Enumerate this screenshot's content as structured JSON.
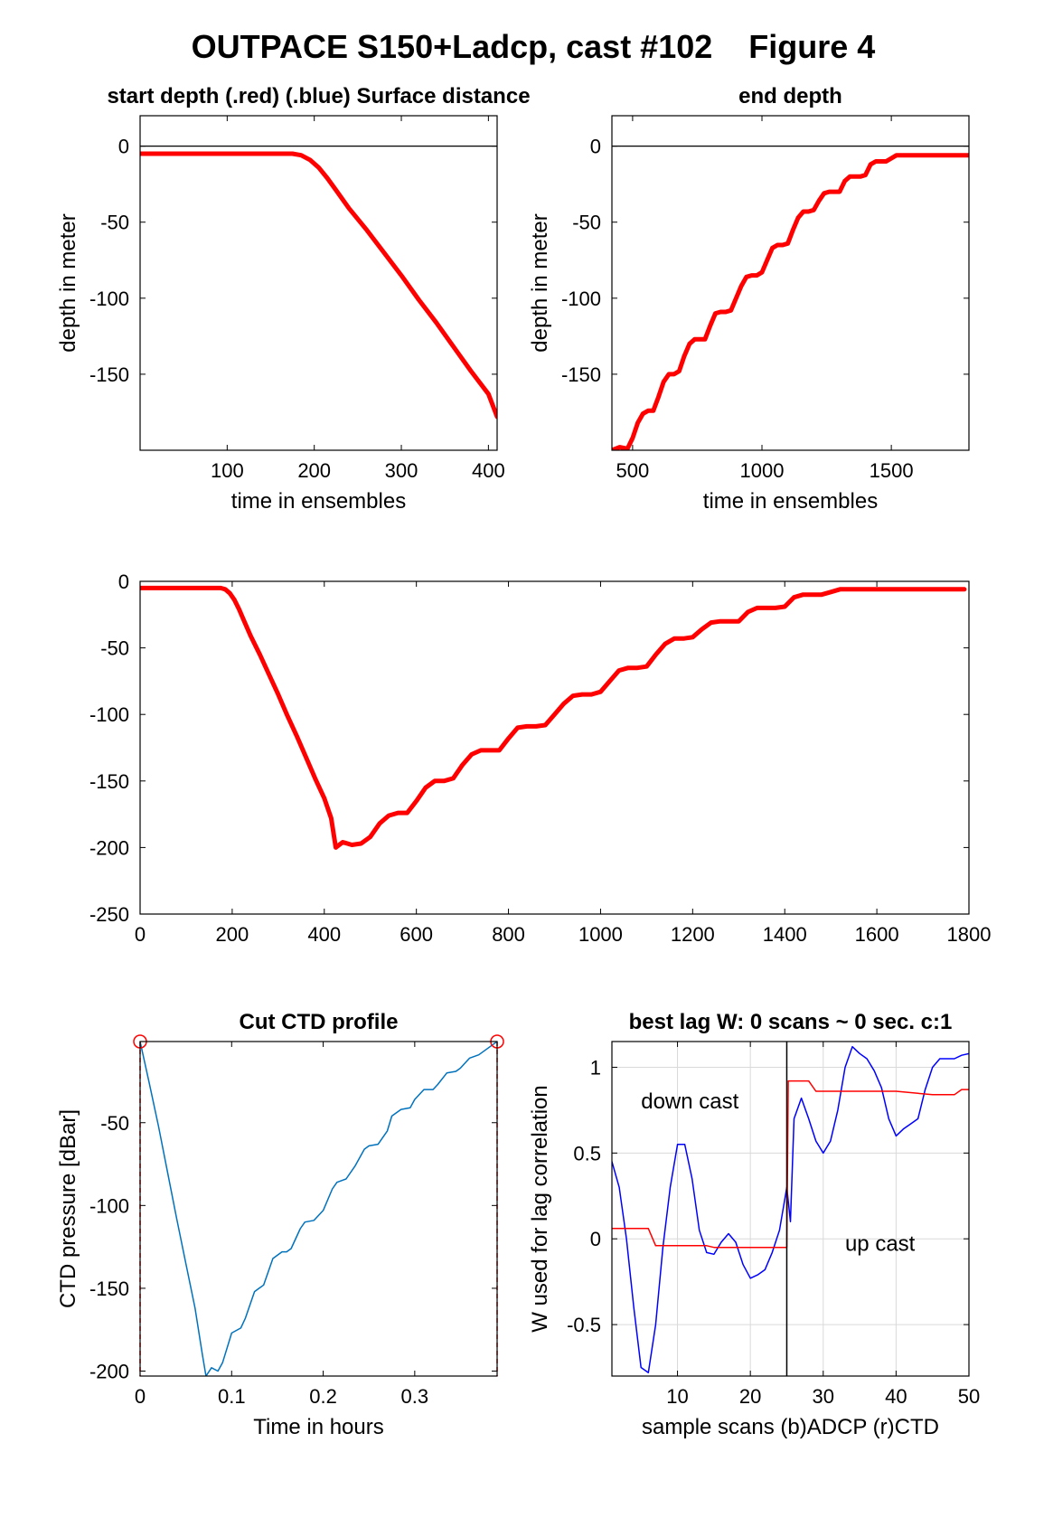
{
  "figure_title": "OUTPACE S150+Ladcp, cast #102    Figure 4",
  "colors": {
    "red": "#ff0000",
    "blue": "#0000ff",
    "ctd": "#0072bd",
    "grid": "#d9d9d9",
    "axes": "#000000"
  },
  "chart_data": [
    {
      "id": "start-depth",
      "type": "line",
      "title": "start depth (.red) (.blue) Surface distance",
      "xlabel": "time in ensembles",
      "ylabel": "depth in meter",
      "xlim": [
        0,
        410
      ],
      "ylim": [
        -200,
        20
      ],
      "xticks": [
        100,
        200,
        300,
        400
      ],
      "yticks": [
        0,
        -50,
        -100,
        -150
      ],
      "zero_line": true,
      "grid": false,
      "series": [
        {
          "color": "#ff0000",
          "width": 5,
          "x": [
            0,
            100,
            175,
            185,
            195,
            205,
            215,
            225,
            240,
            260,
            280,
            300,
            320,
            340,
            360,
            380,
            400,
            410
          ],
          "y": [
            -5,
            -5,
            -5,
            -6,
            -9,
            -14,
            -21,
            -29,
            -41,
            -55,
            -70,
            -85,
            -101,
            -116,
            -132,
            -148,
            -163,
            -178
          ]
        }
      ]
    },
    {
      "id": "end-depth",
      "type": "line",
      "title": "end depth",
      "xlabel": "time in ensembles",
      "ylabel": "depth in meter",
      "xlim": [
        420,
        1800
      ],
      "ylim": [
        -200,
        20
      ],
      "xticks": [
        500,
        1000,
        1500
      ],
      "yticks": [
        0,
        -50,
        -100,
        -150
      ],
      "zero_line": true,
      "grid": false,
      "series": [
        {
          "color": "#ff0000",
          "width": 5,
          "x": [
            420,
            450,
            480,
            500,
            520,
            540,
            560,
            580,
            600,
            620,
            640,
            660,
            680,
            700,
            720,
            740,
            760,
            780,
            800,
            820,
            840,
            860,
            880,
            900,
            920,
            940,
            960,
            980,
            1000,
            1020,
            1040,
            1060,
            1080,
            1100,
            1120,
            1140,
            1160,
            1180,
            1200,
            1220,
            1240,
            1260,
            1280,
            1300,
            1320,
            1340,
            1360,
            1380,
            1400,
            1420,
            1440,
            1460,
            1480,
            1500,
            1520,
            1540,
            1560,
            1600,
            1700,
            1800
          ],
          "y": [
            -200,
            -198,
            -199,
            -192,
            -182,
            -176,
            -174,
            -174,
            -165,
            -155,
            -150,
            -150,
            -148,
            -138,
            -130,
            -127,
            -127,
            -127,
            -118,
            -110,
            -109,
            -109,
            -108,
            -100,
            -92,
            -86,
            -85,
            -85,
            -83,
            -75,
            -67,
            -65,
            -65,
            -64,
            -55,
            -47,
            -43,
            -43,
            -42,
            -36,
            -31,
            -30,
            -30,
            -30,
            -23,
            -20,
            -20,
            -20,
            -19,
            -12,
            -10,
            -10,
            -10,
            -8,
            -6,
            -6,
            -6,
            -6,
            -6,
            -6
          ]
        }
      ]
    },
    {
      "id": "full-depth",
      "type": "line",
      "title": "",
      "xlabel": "",
      "ylabel": "",
      "xlim": [
        0,
        1800
      ],
      "ylim": [
        -250,
        0
      ],
      "xticks": [
        0,
        200,
        400,
        600,
        800,
        1000,
        1200,
        1400,
        1600,
        1800
      ],
      "yticks": [
        0,
        -50,
        -100,
        -150,
        -200,
        -250
      ],
      "zero_line": false,
      "grid": false,
      "series": [
        {
          "color": "#ff0000",
          "width": 5,
          "x": [
            0,
            100,
            175,
            185,
            195,
            205,
            215,
            225,
            240,
            260,
            280,
            300,
            320,
            340,
            360,
            380,
            400,
            415,
            425,
            440,
            460,
            480,
            500,
            520,
            540,
            560,
            580,
            600,
            620,
            640,
            660,
            680,
            700,
            720,
            740,
            760,
            780,
            800,
            820,
            840,
            860,
            880,
            900,
            920,
            940,
            960,
            980,
            1000,
            1020,
            1040,
            1060,
            1080,
            1100,
            1120,
            1140,
            1160,
            1180,
            1200,
            1220,
            1240,
            1260,
            1280,
            1300,
            1320,
            1340,
            1360,
            1380,
            1400,
            1420,
            1440,
            1460,
            1480,
            1500,
            1520,
            1540,
            1560,
            1600,
            1700,
            1790
          ],
          "y": [
            -5,
            -5,
            -5,
            -6,
            -9,
            -14,
            -21,
            -29,
            -41,
            -55,
            -70,
            -85,
            -101,
            -116,
            -132,
            -148,
            -163,
            -178,
            -200,
            -196,
            -198,
            -197,
            -192,
            -182,
            -176,
            -174,
            -174,
            -165,
            -155,
            -150,
            -150,
            -148,
            -138,
            -130,
            -127,
            -127,
            -127,
            -118,
            -110,
            -109,
            -109,
            -108,
            -100,
            -92,
            -86,
            -85,
            -85,
            -83,
            -75,
            -67,
            -65,
            -65,
            -64,
            -55,
            -47,
            -43,
            -43,
            -42,
            -36,
            -31,
            -30,
            -30,
            -30,
            -23,
            -20,
            -20,
            -20,
            -19,
            -12,
            -10,
            -10,
            -10,
            -8,
            -6,
            -6,
            -6,
            -6,
            -6,
            -6
          ]
        }
      ]
    },
    {
      "id": "cut-ctd-profile",
      "type": "line",
      "title": "Cut CTD profile",
      "xlabel": "Time in hours",
      "ylabel": "CTD pressure [dBar]",
      "xlim": [
        0,
        0.39
      ],
      "ylim": [
        -203,
        -1
      ],
      "xticks": [
        0,
        0.1,
        0.2,
        0.3
      ],
      "xtick_labels": [
        "0",
        "0.1",
        "0.2",
        "0.3"
      ],
      "yticks": [
        -50,
        -100,
        -150,
        -200
      ],
      "grid": false,
      "markers": [
        {
          "x": 0,
          "y": -1,
          "color": "#ff0000"
        },
        {
          "x": 0.39,
          "y": -1,
          "color": "#ff0000"
        }
      ],
      "cut_lines": [
        0,
        0.39
      ],
      "series": [
        {
          "color": "#0072bd",
          "width": 1.5,
          "x": [
            0,
            0.01,
            0.02,
            0.03,
            0.04,
            0.05,
            0.06,
            0.068,
            0.072,
            0.078,
            0.085,
            0.09,
            0.1,
            0.11,
            0.115,
            0.125,
            0.13,
            0.135,
            0.145,
            0.155,
            0.16,
            0.165,
            0.175,
            0.18,
            0.19,
            0.2,
            0.21,
            0.215,
            0.225,
            0.235,
            0.245,
            0.25,
            0.26,
            0.27,
            0.275,
            0.285,
            0.295,
            0.3,
            0.31,
            0.32,
            0.325,
            0.335,
            0.345,
            0.35,
            0.36,
            0.37,
            0.38,
            0.39
          ],
          "y": [
            -1,
            -26,
            -52,
            -80,
            -108,
            -135,
            -162,
            -190,
            -203,
            -198,
            -200,
            -195,
            -177,
            -174,
            -168,
            -152,
            -150,
            -148,
            -132,
            -128,
            -128,
            -126,
            -114,
            -110,
            -109,
            -103,
            -90,
            -86,
            -84,
            -76,
            -66,
            -64,
            -63,
            -55,
            -46,
            -42,
            -41,
            -36,
            -30,
            -30,
            -27,
            -20,
            -19,
            -17,
            -11,
            -9,
            -5,
            -1
          ]
        }
      ]
    },
    {
      "id": "best-lag",
      "type": "line",
      "title": "best lag W: 0 scans ~ 0 sec.  c:1",
      "xlabel": "sample scans (b)ADCP (r)CTD",
      "ylabel": "W used for lag correlation",
      "xlim": [
        1,
        50
      ],
      "ylim": [
        -0.8,
        1.15
      ],
      "xticks": [
        10,
        20,
        30,
        40,
        50
      ],
      "yticks": [
        1,
        0.5,
        0,
        -0.5
      ],
      "yticklabels": [
        "1",
        "0.5",
        "0",
        "-0.5"
      ],
      "grid": true,
      "divider_x": 25,
      "annotations": [
        {
          "text": "down cast",
          "x": 5,
          "y": 0.76
        },
        {
          "text": "up cast",
          "x": 33,
          "y": -0.07
        }
      ],
      "series": [
        {
          "name": "ADCP",
          "color": "#0000ff",
          "width": 1.5,
          "x": [
            1,
            2,
            3,
            4,
            5,
            6,
            7,
            8,
            9,
            10,
            11,
            12,
            13,
            14,
            15,
            16,
            17,
            18,
            19,
            20,
            21,
            22,
            23,
            24,
            25,
            25.5,
            26,
            27,
            28,
            29,
            30,
            31,
            32,
            33,
            34,
            35,
            36,
            37,
            38,
            39,
            40,
            41,
            42,
            43,
            44,
            45,
            46,
            47,
            48,
            49,
            50
          ],
          "y": [
            0.45,
            0.3,
            0.0,
            -0.4,
            -0.75,
            -0.78,
            -0.5,
            -0.05,
            0.3,
            0.55,
            0.55,
            0.35,
            0.05,
            -0.08,
            -0.09,
            -0.02,
            0.03,
            -0.02,
            -0.15,
            -0.23,
            -0.21,
            -0.18,
            -0.08,
            0.05,
            0.3,
            0.1,
            0.7,
            0.82,
            0.7,
            0.57,
            0.5,
            0.57,
            0.75,
            1.0,
            1.12,
            1.08,
            1.05,
            0.98,
            0.88,
            0.7,
            0.6,
            0.64,
            0.67,
            0.7,
            0.87,
            1.0,
            1.05,
            1.05,
            1.05,
            1.07,
            1.08
          ]
        },
        {
          "name": "CTD",
          "color": "#ff0000",
          "width": 1.5,
          "x": [
            1,
            6,
            7,
            14,
            15,
            25,
            25.2,
            26,
            28,
            29,
            40,
            45,
            48,
            49,
            50
          ],
          "y": [
            0.06,
            0.06,
            -0.04,
            -0.04,
            -0.05,
            -0.05,
            0.92,
            0.92,
            0.92,
            0.86,
            0.86,
            0.84,
            0.84,
            0.87,
            0.87
          ]
        }
      ]
    }
  ]
}
